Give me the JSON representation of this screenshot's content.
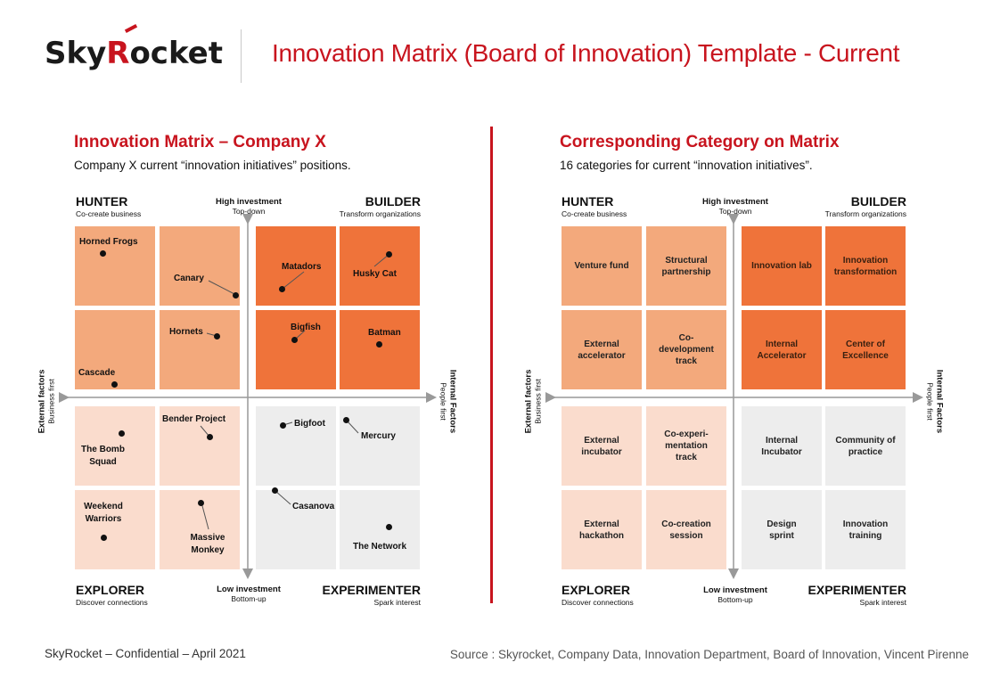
{
  "header": {
    "logo_sky": "Sky",
    "logo_r": "R",
    "logo_rest": "ocket",
    "title": "Innovation Matrix (Board of Innovation) Template - Current"
  },
  "left": {
    "title": "Innovation Matrix – Company X",
    "subtitle": "Company X current “innovation initiatives” positions."
  },
  "right": {
    "title": "Corresponding Category on Matrix",
    "subtitle": "16 categories for current “innovation initiatives”."
  },
  "quadrants": {
    "hunter": {
      "label": "HUNTER",
      "sub": "Co-create business"
    },
    "builder": {
      "label": "BUILDER",
      "sub": "Transform organizations"
    },
    "explorer": {
      "label": "EXPLORER",
      "sub": "Discover connections"
    },
    "experimenter": {
      "label": "EXPERIMENTER",
      "sub": "Spark interest"
    }
  },
  "axes": {
    "top": "High investment",
    "top_sub": "Top-down",
    "bottom": "Low investment",
    "bottom_sub": "Bottom-up",
    "left": "External factors",
    "left_sub": "Business first",
    "right": "Internal Factors",
    "right_sub": "People first"
  },
  "initiatives": {
    "horned_frogs": "Horned Frogs",
    "canary": "Canary",
    "hornets": "Hornets",
    "cascade": "Cascade",
    "matadors": "Matadors",
    "husky_cat": "Husky Cat",
    "bigfish": "Bigfish",
    "batman": "Batman",
    "bender_project": "Bender Project",
    "bomb_squad": "The Bomb Squad",
    "weekend_warriors": "Weekend Warriors",
    "massive_monkey": "Massive Monkey",
    "bigfoot": "Bigfoot",
    "mercury": "Mercury",
    "casanova": "Casanova",
    "the_network": "The Network"
  },
  "categories": {
    "venture_fund": "Venture fund",
    "structural_partnership": "Structural partnership",
    "innovation_lab": "Innovation lab",
    "innovation_transformation": "Innovation transformation",
    "external_accelerator": "External accelerator",
    "co_development_track": "Co-development track",
    "internal_accelerator": "Internal Accelerator",
    "center_of_excellence": "Center of Excellence",
    "external_incubator": "External incubator",
    "co_experimentation_track": "Co-experi-mentation track",
    "internal_incubator": "Internal Incubator",
    "community_of_practice": "Community of practice",
    "external_hackathon": "External hackathon",
    "co_creation_session": "Co-creation session",
    "design_sprint": "Design sprint",
    "innovation_training": "Innovation training"
  },
  "footer": {
    "left": "SkyRocket – Confidential – April 2021",
    "right": "Source : Skyrocket, Company Data, Innovation Department, Board of Innovation, Vincent Pirenne"
  },
  "colors": {
    "brand_red": "#c8141e",
    "hunter": "#f3a97c",
    "builder": "#ef733a",
    "explorer": "#fadccd",
    "experimenter": "#ededed"
  }
}
